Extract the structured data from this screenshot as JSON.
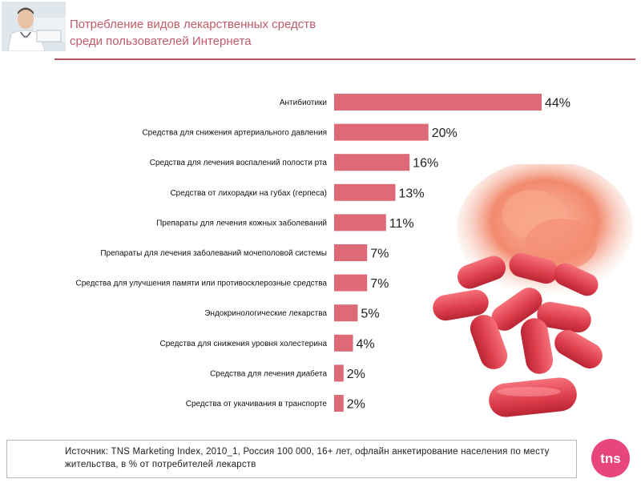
{
  "header": {
    "title_line1": "Потребление видов лекарственных средств",
    "title_line2": "среди пользователей Интернета"
  },
  "colors": {
    "bar": "#de6a78",
    "title": "#c05a6a",
    "rule": "#b5525d",
    "logo": "#e8457a"
  },
  "chart_data": {
    "type": "bar",
    "orientation": "horizontal",
    "categories": [
      "Антибиотики",
      "Средства для снижения артериального давления",
      "Средства для лечения воспалений полости рта",
      "Средства от лихорадки на губах (герпеса)",
      "Препараты для лечения кожных заболеваний",
      "Препараты для лечения заболеваний мочеполовой системы",
      "Средства для улучшения памяти или противосклерозные средства",
      "Эндокринологические лекарства",
      "Средства для снижения уровня холестерина",
      "Средства для лечения диабета",
      "Средства от укачивания в транспорте"
    ],
    "values": [
      44,
      20,
      16,
      13,
      11,
      7,
      7,
      5,
      4,
      2,
      2
    ],
    "data_labels": [
      "44%",
      "20%",
      "16%",
      "13%",
      "11%",
      "7%",
      "7%",
      "5%",
      "4%",
      "2%",
      "2%"
    ],
    "value_unit": "%",
    "xlim": [
      0,
      44
    ],
    "grid": false,
    "legend": "none"
  },
  "footer": {
    "source": "Источник: TNS Marketing Index, 2010_1, Россия 100 000, 16+ лет, офлайн анкетирование населения по месту жительства, в % от потребителей лекарств",
    "logo_text": "tns"
  }
}
